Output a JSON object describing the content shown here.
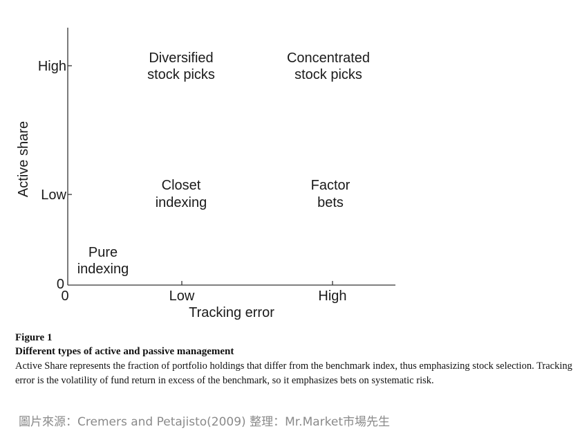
{
  "figure": {
    "y_axis": {
      "label": "Active share",
      "ticks": [
        "High",
        "Low",
        "0"
      ]
    },
    "x_axis": {
      "label": "Tracking error",
      "ticks": [
        "0",
        "Low",
        "High"
      ]
    },
    "quadrants": {
      "diversified": [
        "Diversified",
        "stock picks"
      ],
      "concentrated": [
        "Concentrated",
        "stock picks"
      ],
      "closet": [
        "Closet",
        "indexing"
      ],
      "factor": [
        "Factor",
        "bets"
      ],
      "pure": [
        "Pure",
        "indexing"
      ]
    }
  },
  "caption": {
    "figure_label": "Figure 1",
    "title": "Different types of active and passive management",
    "body": "Active Share represents the fraction of portfolio holdings that differ from the benchmark index, thus emphasizing stock selection. Tracking error is the volatility of fund return in excess of the benchmark, so it emphasizes bets on systematic risk."
  },
  "source_note": "圖片來源：Cremers and Petajisto(2009) 整理：Mr.Market市場先生"
}
